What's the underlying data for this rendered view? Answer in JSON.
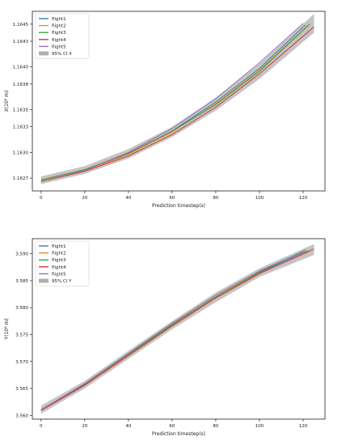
{
  "chart_data": [
    {
      "type": "line",
      "xlabel": "Prediction timestep(s)",
      "ylabel": "X(10⁶ m)",
      "xlim": [
        -4,
        130
      ],
      "ylim": [
        1.16255,
        1.16465
      ],
      "xticks": [
        0,
        20,
        40,
        60,
        80,
        100,
        120
      ],
      "xtick_labels": [
        "0",
        "20",
        "40",
        "60",
        "80",
        "100",
        "120"
      ],
      "yticks": [
        1.1627,
        1.163,
        1.1633,
        1.1635,
        1.1638,
        1.164,
        1.1643,
        1.1645
      ],
      "ytick_labels": [
        "1.1627",
        "1.1630",
        "1.1633",
        "1.1635",
        "1.1638",
        "1.1640",
        "1.1643",
        "1.1645"
      ],
      "grid": false,
      "legend_position": "top-left",
      "ci": {
        "name": "95% CI X",
        "color": "#b0b0b0",
        "x": [
          0,
          20,
          40,
          60,
          80,
          100,
          125
        ],
        "lower": [
          1.16263,
          1.16275,
          1.16293,
          1.16318,
          1.16349,
          1.16386,
          1.1644
        ],
        "upper": [
          1.16272,
          1.16284,
          1.16304,
          1.1633,
          1.16364,
          1.16404,
          1.16462
        ]
      },
      "series": [
        {
          "name": "flight1",
          "color": "#1f77b4",
          "x": [
            0,
            20,
            40,
            60,
            80,
            100,
            121
          ],
          "values": [
            1.16266,
            1.16279,
            1.16299,
            1.16325,
            1.16359,
            1.16398,
            1.16449
          ]
        },
        {
          "name": "flight2",
          "color": "#ff7f0e",
          "x": [
            0,
            20,
            40,
            60,
            80,
            100,
            122
          ],
          "values": [
            1.16267,
            1.16279,
            1.16298,
            1.16324,
            1.16357,
            1.16396,
            1.16448
          ]
        },
        {
          "name": "flight3",
          "color": "#2ca02c",
          "x": [
            0,
            20,
            40,
            60,
            80,
            100,
            123
          ],
          "values": [
            1.16268,
            1.1628,
            1.16299,
            1.16325,
            1.16356,
            1.16395,
            1.1645
          ]
        },
        {
          "name": "flight4",
          "color": "#d62728",
          "x": [
            0,
            20,
            40,
            60,
            80,
            100,
            125
          ],
          "values": [
            1.16266,
            1.16278,
            1.16296,
            1.16321,
            1.16353,
            1.16392,
            1.16447
          ]
        },
        {
          "name": "flight5",
          "color": "#9467bd",
          "x": [
            0,
            20,
            40,
            60,
            80,
            100,
            120
          ],
          "values": [
            1.16266,
            1.16279,
            1.163,
            1.16328,
            1.16363,
            1.16405,
            1.16451
          ]
        }
      ]
    },
    {
      "type": "line",
      "xlabel": "Prediction timestep(s)",
      "ylabel": "Y(10⁶ m)",
      "xlim": [
        -4,
        130
      ],
      "ylim": [
        3.5593,
        3.5928
      ],
      "xticks": [
        0,
        20,
        40,
        60,
        80,
        100,
        120
      ],
      "xtick_labels": [
        "0",
        "20",
        "40",
        "60",
        "80",
        "100",
        "120"
      ],
      "yticks": [
        3.56,
        3.565,
        3.57,
        3.575,
        3.58,
        3.585,
        3.59
      ],
      "ytick_labels": [
        "3.560",
        "3.565",
        "3.570",
        "3.575",
        "3.580",
        "3.585",
        "3.590"
      ],
      "grid": false,
      "legend_position": "top-left",
      "ci": {
        "name": "95% CI Y",
        "color": "#b0b0b0",
        "x": [
          0,
          20,
          40,
          60,
          80,
          100,
          125
        ],
        "lower": [
          3.5603,
          3.565,
          3.5705,
          3.576,
          3.581,
          3.5857,
          3.5898
        ],
        "upper": [
          3.5618,
          3.5664,
          3.572,
          3.5775,
          3.5828,
          3.5873,
          3.5918
        ]
      },
      "series": [
        {
          "name": "flight1",
          "color": "#1f77b4",
          "x": [
            0,
            20,
            40,
            60,
            80,
            100,
            122
          ],
          "values": [
            3.561,
            3.5657,
            3.5712,
            3.5767,
            3.5819,
            3.5865,
            3.5906
          ]
        },
        {
          "name": "flight2",
          "color": "#ff7f0e",
          "x": [
            0,
            20,
            40,
            60,
            80,
            100,
            123
          ],
          "values": [
            3.5611,
            3.5657,
            3.5713,
            3.5768,
            3.5819,
            3.5864,
            3.5904
          ]
        },
        {
          "name": "flight3",
          "color": "#2ca02c",
          "x": [
            0,
            20,
            40,
            60,
            80,
            100,
            121
          ],
          "values": [
            3.561,
            3.5658,
            3.5714,
            3.5769,
            3.582,
            3.5866,
            3.5907
          ]
        },
        {
          "name": "flight4",
          "color": "#d62728",
          "x": [
            0,
            20,
            40,
            60,
            80,
            100,
            125
          ],
          "values": [
            3.5609,
            3.5656,
            3.5711,
            3.5766,
            3.5818,
            3.5863,
            3.5909
          ]
        },
        {
          "name": "flight5",
          "color": "#9467bd",
          "x": [
            0,
            20,
            40,
            60,
            80,
            100,
            120
          ],
          "values": [
            3.561,
            3.5659,
            3.5715,
            3.5771,
            3.5823,
            3.5868,
            3.5904
          ]
        }
      ]
    }
  ]
}
